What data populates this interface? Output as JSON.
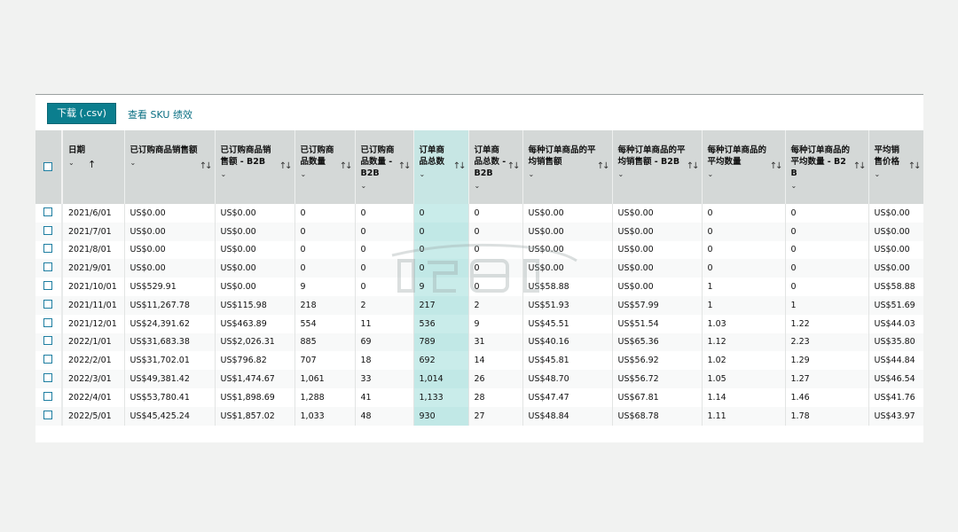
{
  "toolbar": {
    "download_label": "下载 (.csv)",
    "sku_link_label": "查看 SKU 绩效"
  },
  "columns": [
    {
      "label": "日期",
      "sort": "asc"
    },
    {
      "label": "已订购商品销售额"
    },
    {
      "label": "已订购商品销售额 - B2B"
    },
    {
      "label": "已订购商品数量"
    },
    {
      "label": "已订购商品数量 - B2B"
    },
    {
      "label": "订单商品总数"
    },
    {
      "label": "订单商品总数 - B2B"
    },
    {
      "label": "每种订单商品的平均销售额"
    },
    {
      "label": "每种订单商品的平均销售额 - B2B"
    },
    {
      "label": "每种订单商品的平均数量"
    },
    {
      "label": "每种订单商品的平均数量 - B2B"
    },
    {
      "label": "平均销售价格"
    }
  ],
  "rows": [
    [
      "2021/6/01",
      "US$0.00",
      "US$0.00",
      "0",
      "0",
      "0",
      "0",
      "US$0.00",
      "US$0.00",
      "0",
      "0",
      "US$0.00"
    ],
    [
      "2021/7/01",
      "US$0.00",
      "US$0.00",
      "0",
      "0",
      "0",
      "0",
      "US$0.00",
      "US$0.00",
      "0",
      "0",
      "US$0.00"
    ],
    [
      "2021/8/01",
      "US$0.00",
      "US$0.00",
      "0",
      "0",
      "0",
      "0",
      "US$0.00",
      "US$0.00",
      "0",
      "0",
      "US$0.00"
    ],
    [
      "2021/9/01",
      "US$0.00",
      "US$0.00",
      "0",
      "0",
      "0",
      "0",
      "US$0.00",
      "US$0.00",
      "0",
      "0",
      "US$0.00"
    ],
    [
      "2021/10/01",
      "US$529.91",
      "US$0.00",
      "9",
      "0",
      "9",
      "0",
      "US$58.88",
      "US$0.00",
      "1",
      "0",
      "US$58.88"
    ],
    [
      "2021/11/01",
      "US$11,267.78",
      "US$115.98",
      "218",
      "2",
      "217",
      "2",
      "US$51.93",
      "US$57.99",
      "1",
      "1",
      "US$51.69"
    ],
    [
      "2021/12/01",
      "US$24,391.62",
      "US$463.89",
      "554",
      "11",
      "536",
      "9",
      "US$45.51",
      "US$51.54",
      "1.03",
      "1.22",
      "US$44.03"
    ],
    [
      "2022/1/01",
      "US$31,683.38",
      "US$2,026.31",
      "885",
      "69",
      "789",
      "31",
      "US$40.16",
      "US$65.36",
      "1.12",
      "2.23",
      "US$35.80"
    ],
    [
      "2022/2/01",
      "US$31,702.01",
      "US$796.82",
      "707",
      "18",
      "692",
      "14",
      "US$45.81",
      "US$56.92",
      "1.02",
      "1.29",
      "US$44.84"
    ],
    [
      "2022/3/01",
      "US$49,381.42",
      "US$1,474.67",
      "1,061",
      "33",
      "1,014",
      "26",
      "US$48.70",
      "US$56.72",
      "1.05",
      "1.27",
      "US$46.54"
    ],
    [
      "2022/4/01",
      "US$53,780.41",
      "US$1,898.69",
      "1,288",
      "41",
      "1,133",
      "28",
      "US$47.47",
      "US$67.81",
      "1.14",
      "1.46",
      "US$41.76"
    ],
    [
      "2022/5/01",
      "US$45,425.24",
      "US$1,857.02",
      "1,033",
      "48",
      "930",
      "27",
      "US$48.84",
      "US$68.78",
      "1.11",
      "1.78",
      "US$43.97"
    ]
  ],
  "highlight_column_index": 5,
  "colors": {
    "accent": "#0b7e8e",
    "link": "#0a6f83",
    "header_bg": "#d4d8d7",
    "highlight": "#c9ecea"
  }
}
